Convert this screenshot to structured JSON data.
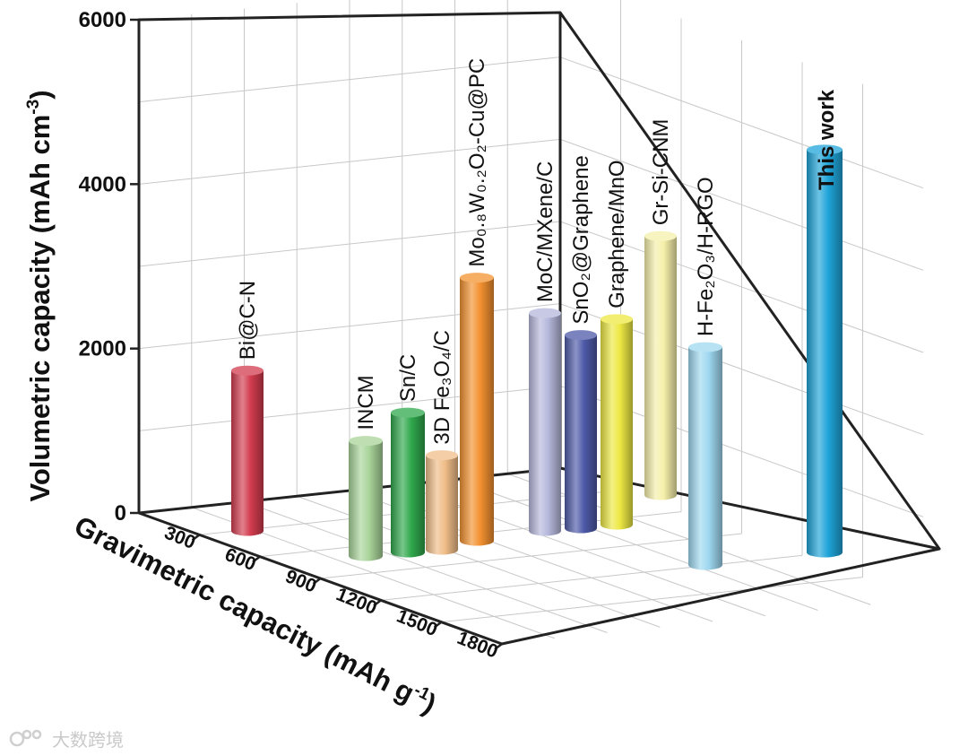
{
  "chart_data": {
    "type": "bar",
    "subtype": "3d-cylinder",
    "title": "",
    "ylabel": "Volumetric capacity (mAh cm",
    "ylabel_sup": "-3",
    "ylabel_end": ")",
    "xlabel": "Gravimetric capacity (mAh g",
    "xlabel_sup": "-1",
    "xlabel_end": ")",
    "ylim": [
      0,
      6000
    ],
    "yticks": [
      "0",
      "2000",
      "4000",
      "6000"
    ],
    "xlim": [
      0,
      1800
    ],
    "xticks": [
      "300",
      "600",
      "900",
      "1200",
      "1500",
      "1800"
    ],
    "grid": true,
    "series": [
      {
        "name": "Bi@C-N",
        "x": 300,
        "value": 1950,
        "color": "#d23c4e"
      },
      {
        "name": "INCM",
        "x": 900,
        "value": 1400,
        "color": "#a9d49a"
      },
      {
        "name": "Sn/C",
        "x": 1000,
        "value": 1700,
        "color": "#2fa84c"
      },
      {
        "name": "3D Fe₃O₄/C",
        "x": 1050,
        "value": 1150,
        "color": "#f0bd88"
      },
      {
        "name": "Mo₀.₈W₀.₂O₂-Cu@PC",
        "x": 1100,
        "value": 3200,
        "color": "#f39130"
      },
      {
        "name": "MoC/MXene/C",
        "x": 900,
        "value": 2650,
        "color": "#b6b8dc"
      },
      {
        "name": "SnO₂@Graphene",
        "x": 900,
        "value": 2350,
        "color": "#4e5aa8"
      },
      {
        "name": "Graphene/MnO",
        "x": 900,
        "value": 2500,
        "color": "#ede843"
      },
      {
        "name": "Gr-Si-CNM",
        "x": 600,
        "value": 3150,
        "color": "#f6f0aa"
      },
      {
        "name": "H-Fe₂O₃/H-RGO",
        "x": 1500,
        "value": 2650,
        "color": "#9ed8f0"
      },
      {
        "name": "This work",
        "x": 1500,
        "value": 4900,
        "color": "#1fa4d9",
        "label_color": "#e8221f"
      }
    ]
  },
  "watermark": {
    "text": "大数跨境"
  }
}
